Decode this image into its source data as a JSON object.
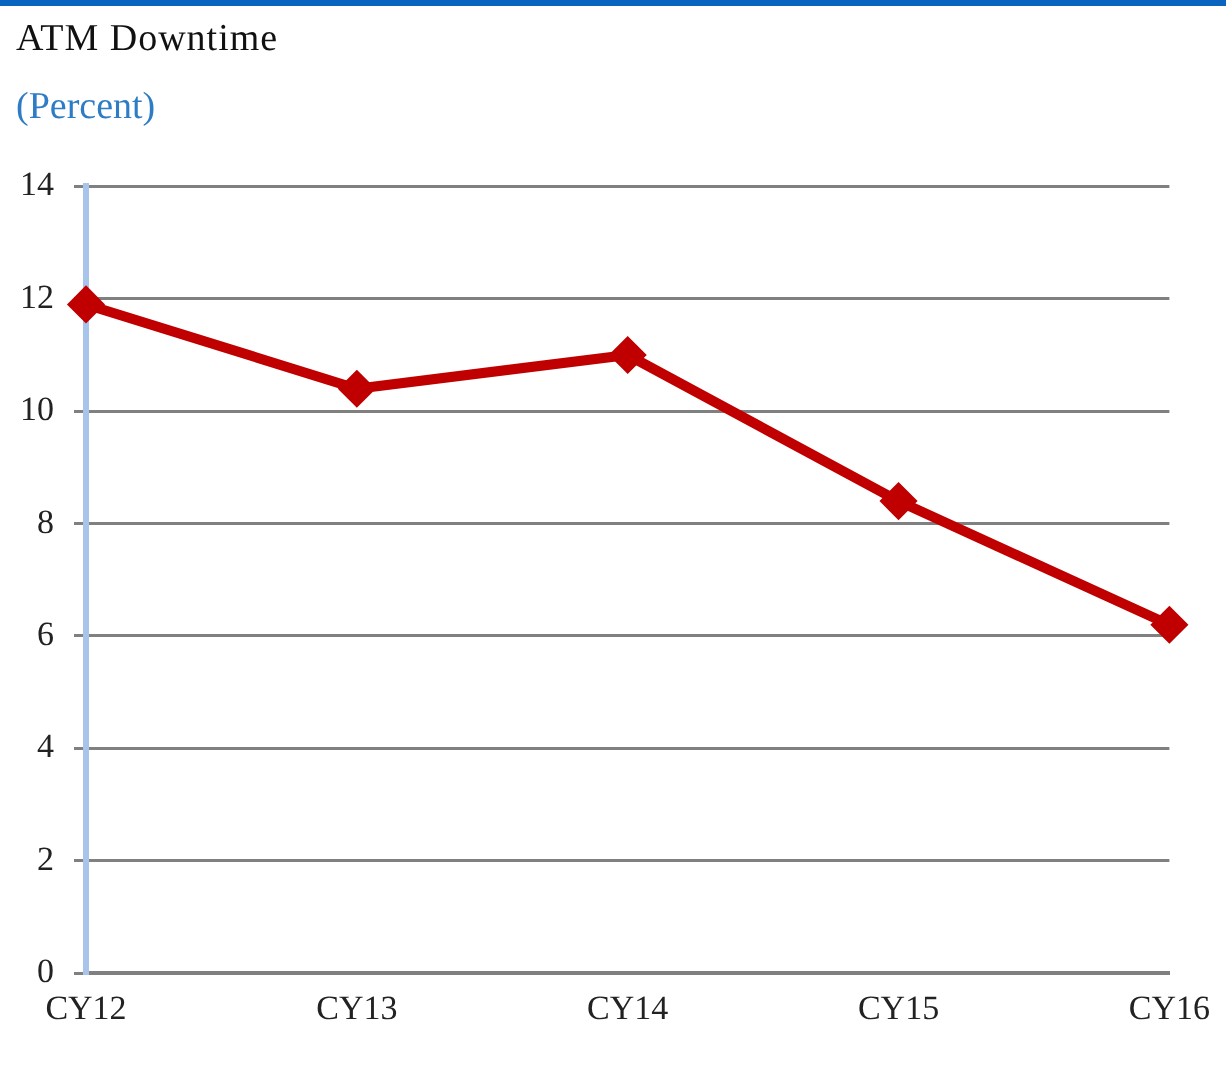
{
  "chart_data": {
    "type": "line",
    "title": "ATM Downtime",
    "subtitle": "(Percent)",
    "categories": [
      "CY12",
      "CY13",
      "CY14",
      "CY15",
      "CY16"
    ],
    "series": [
      {
        "color": "#c00000",
        "values": [
          11.9,
          10.4,
          11.0,
          8.4,
          6.2
        ]
      }
    ],
    "ylim": [
      0,
      14
    ],
    "yticks": [
      0,
      2,
      4,
      6,
      8,
      10,
      12,
      14
    ],
    "grid": "y",
    "legend": false,
    "marker": "diamond",
    "line_style": "solid"
  }
}
